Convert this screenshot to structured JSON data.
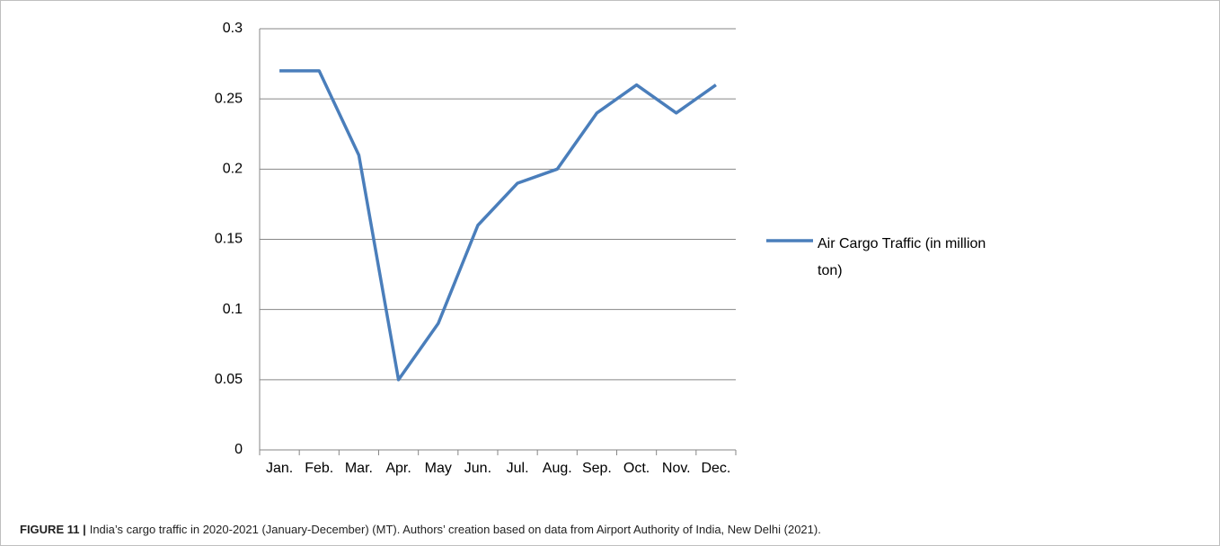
{
  "chart_data": {
    "type": "line",
    "categories": [
      "Jan.",
      "Feb.",
      "Mar.",
      "Apr.",
      "May",
      "Jun.",
      "Jul.",
      "Aug.",
      "Sep.",
      "Oct.",
      "Nov.",
      "Dec."
    ],
    "series": [
      {
        "name": "Air Cargo Traffic (in million ton)",
        "color": "#4a7ebb",
        "values": [
          0.27,
          0.27,
          0.21,
          0.05,
          0.09,
          0.16,
          0.19,
          0.2,
          0.24,
          0.26,
          0.24,
          0.26
        ]
      }
    ],
    "ylim": [
      0,
      0.3
    ],
    "yticks": [
      0,
      0.05,
      0.1,
      0.15,
      0.2,
      0.25,
      0.3
    ],
    "grid": true,
    "legend_position": "right"
  },
  "caption": {
    "label": "FIGURE 11 |",
    "text": "India’s cargo traffic in 2020-2021 (January-December) (MT). Authors’ creation based on data from Airport Authority of India, New Delhi (2021)."
  }
}
